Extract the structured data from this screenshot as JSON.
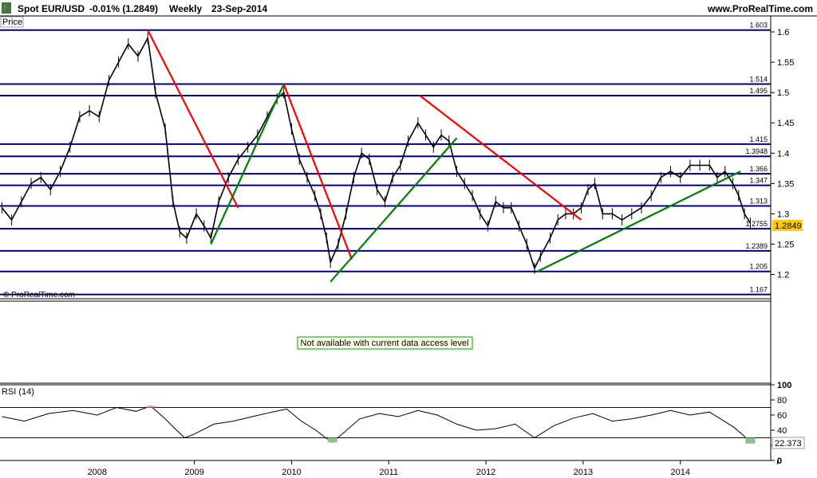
{
  "header": {
    "title": "Spot EUR/USD",
    "change": "-0.01% (1.2849)",
    "period": "Weekly",
    "date": "23-Sep-2014",
    "site": "www.ProRealTime.com"
  },
  "price_panel": {
    "label": "Price",
    "watermark": "© ProRealTime.com",
    "current_price_label": "1.2849"
  },
  "indicator_panel": {
    "message": "Not available with current data access level"
  },
  "rsi_panel": {
    "label": "RSI (14)",
    "current_value_label": "22.373"
  },
  "colors": {
    "level_line": "#000080",
    "trend_down": "#ff0000",
    "trend_up": "#008000",
    "price": "#000000",
    "current_tag": "#ffcc00",
    "rsi_overbought_fill": "#d9a0a0",
    "rsi_oversold_fill": "#90c090",
    "message_border": "#00a000"
  },
  "chart_data": [
    {
      "type": "line",
      "name": "price",
      "ylim": [
        1.16,
        1.625
      ],
      "y_ticks": [
        1.2,
        1.25,
        1.3,
        1.35,
        1.4,
        1.45,
        1.5,
        1.55,
        1.6
      ],
      "y_tick_labels": [
        "1.2",
        "1.25",
        "1.3",
        "1.35",
        "1.4",
        "1.45",
        "1.5",
        "1.55",
        "1.6"
      ],
      "x_tick_labels": [
        "2008",
        "2009",
        "2010",
        "2011",
        "2012",
        "2013",
        "2014"
      ],
      "horizontal_levels": [
        {
          "value": 1.603,
          "label": "1.603"
        },
        {
          "value": 1.514,
          "label": "1.514"
        },
        {
          "value": 1.495,
          "label": "1.495"
        },
        {
          "value": 1.415,
          "label": "1.415"
        },
        {
          "value": 1.3948,
          "label": "1.3948"
        },
        {
          "value": 1.366,
          "label": "1.366"
        },
        {
          "value": 1.347,
          "label": "1.347"
        },
        {
          "value": 1.313,
          "label": "1.313"
        },
        {
          "value": 1.2755,
          "label": "1.2755"
        },
        {
          "value": 1.2389,
          "label": "1.2389"
        },
        {
          "value": 1.205,
          "label": "1.205"
        },
        {
          "value": 1.167,
          "label": "1.167"
        }
      ],
      "trendlines": [
        {
          "color": "down",
          "x": [
            2008.52,
            2009.45
          ],
          "y": [
            1.603,
            1.31
          ]
        },
        {
          "color": "up",
          "x": [
            2009.17,
            2009.92
          ],
          "y": [
            1.25,
            1.514
          ]
        },
        {
          "color": "down",
          "x": [
            2009.92,
            2010.62
          ],
          "y": [
            1.514,
            1.225
          ]
        },
        {
          "color": "up",
          "x": [
            2010.4,
            2011.7
          ],
          "y": [
            1.188,
            1.425
          ]
        },
        {
          "color": "down",
          "x": [
            2011.32,
            2012.98
          ],
          "y": [
            1.495,
            1.29
          ]
        },
        {
          "color": "up",
          "x": [
            2012.53,
            2014.62
          ],
          "y": [
            1.205,
            1.37
          ]
        }
      ],
      "x": [
        2007.02,
        2007.12,
        2007.22,
        2007.32,
        2007.42,
        2007.52,
        2007.62,
        2007.72,
        2007.82,
        2007.92,
        2008.02,
        2008.12,
        2008.22,
        2008.32,
        2008.42,
        2008.52,
        2008.6,
        2008.7,
        2008.78,
        2008.85,
        2008.92,
        2009.02,
        2009.1,
        2009.17,
        2009.25,
        2009.35,
        2009.45,
        2009.55,
        2009.65,
        2009.75,
        2009.85,
        2009.92,
        2010.0,
        2010.08,
        2010.16,
        2010.24,
        2010.3,
        2010.36,
        2010.4,
        2010.48,
        2010.56,
        2010.64,
        2010.72,
        2010.8,
        2010.88,
        2010.96,
        2011.04,
        2011.12,
        2011.2,
        2011.3,
        2011.38,
        2011.46,
        2011.54,
        2011.62,
        2011.7,
        2011.78,
        2011.86,
        2011.94,
        2012.02,
        2012.1,
        2012.18,
        2012.26,
        2012.34,
        2012.42,
        2012.5,
        2012.56,
        2012.66,
        2012.74,
        2012.82,
        2012.9,
        2012.98,
        2013.05,
        2013.12,
        2013.2,
        2013.3,
        2013.4,
        2013.5,
        2013.6,
        2013.7,
        2013.8,
        2013.9,
        2014.0,
        2014.1,
        2014.2,
        2014.3,
        2014.38,
        2014.46,
        2014.54,
        2014.6,
        2014.66,
        2014.72
      ],
      "y": [
        1.31,
        1.29,
        1.32,
        1.35,
        1.36,
        1.34,
        1.37,
        1.41,
        1.46,
        1.47,
        1.46,
        1.52,
        1.55,
        1.58,
        1.56,
        1.59,
        1.5,
        1.44,
        1.32,
        1.27,
        1.26,
        1.3,
        1.28,
        1.26,
        1.32,
        1.36,
        1.39,
        1.41,
        1.43,
        1.46,
        1.49,
        1.5,
        1.44,
        1.39,
        1.36,
        1.33,
        1.3,
        1.26,
        1.22,
        1.25,
        1.3,
        1.36,
        1.4,
        1.39,
        1.34,
        1.32,
        1.36,
        1.38,
        1.42,
        1.45,
        1.43,
        1.41,
        1.43,
        1.42,
        1.37,
        1.35,
        1.33,
        1.3,
        1.28,
        1.32,
        1.31,
        1.31,
        1.28,
        1.25,
        1.21,
        1.23,
        1.26,
        1.29,
        1.3,
        1.3,
        1.31,
        1.34,
        1.35,
        1.3,
        1.3,
        1.29,
        1.3,
        1.31,
        1.33,
        1.36,
        1.37,
        1.36,
        1.38,
        1.38,
        1.38,
        1.36,
        1.37,
        1.35,
        1.33,
        1.3,
        1.2849
      ]
    },
    {
      "type": "line",
      "name": "RSI (14)",
      "ylim": [
        0,
        100
      ],
      "y_ticks": [
        0,
        20,
        40,
        60,
        80,
        100
      ],
      "y_tick_labels": [
        "0",
        "20",
        "40",
        "60",
        "80",
        "100"
      ],
      "reference_lines": [
        70,
        30
      ],
      "x": [
        2007.02,
        2007.25,
        2007.5,
        2007.75,
        2008.0,
        2008.2,
        2008.4,
        2008.55,
        2008.7,
        2008.8,
        2008.9,
        2009.0,
        2009.2,
        2009.4,
        2009.6,
        2009.8,
        2009.95,
        2010.1,
        2010.25,
        2010.35,
        2010.42,
        2010.55,
        2010.7,
        2010.9,
        2011.1,
        2011.3,
        2011.5,
        2011.7,
        2011.9,
        2012.1,
        2012.3,
        2012.5,
        2012.7,
        2012.9,
        2013.1,
        2013.3,
        2013.5,
        2013.7,
        2013.9,
        2014.1,
        2014.3,
        2014.45,
        2014.55,
        2014.65,
        2014.72
      ],
      "y": [
        58,
        52,
        62,
        66,
        60,
        70,
        65,
        72,
        55,
        42,
        30,
        35,
        48,
        52,
        58,
        64,
        68,
        52,
        40,
        30,
        24,
        38,
        55,
        62,
        58,
        66,
        60,
        48,
        40,
        42,
        48,
        30,
        46,
        56,
        62,
        52,
        55,
        60,
        66,
        60,
        64,
        52,
        44,
        33,
        22.373
      ]
    }
  ]
}
